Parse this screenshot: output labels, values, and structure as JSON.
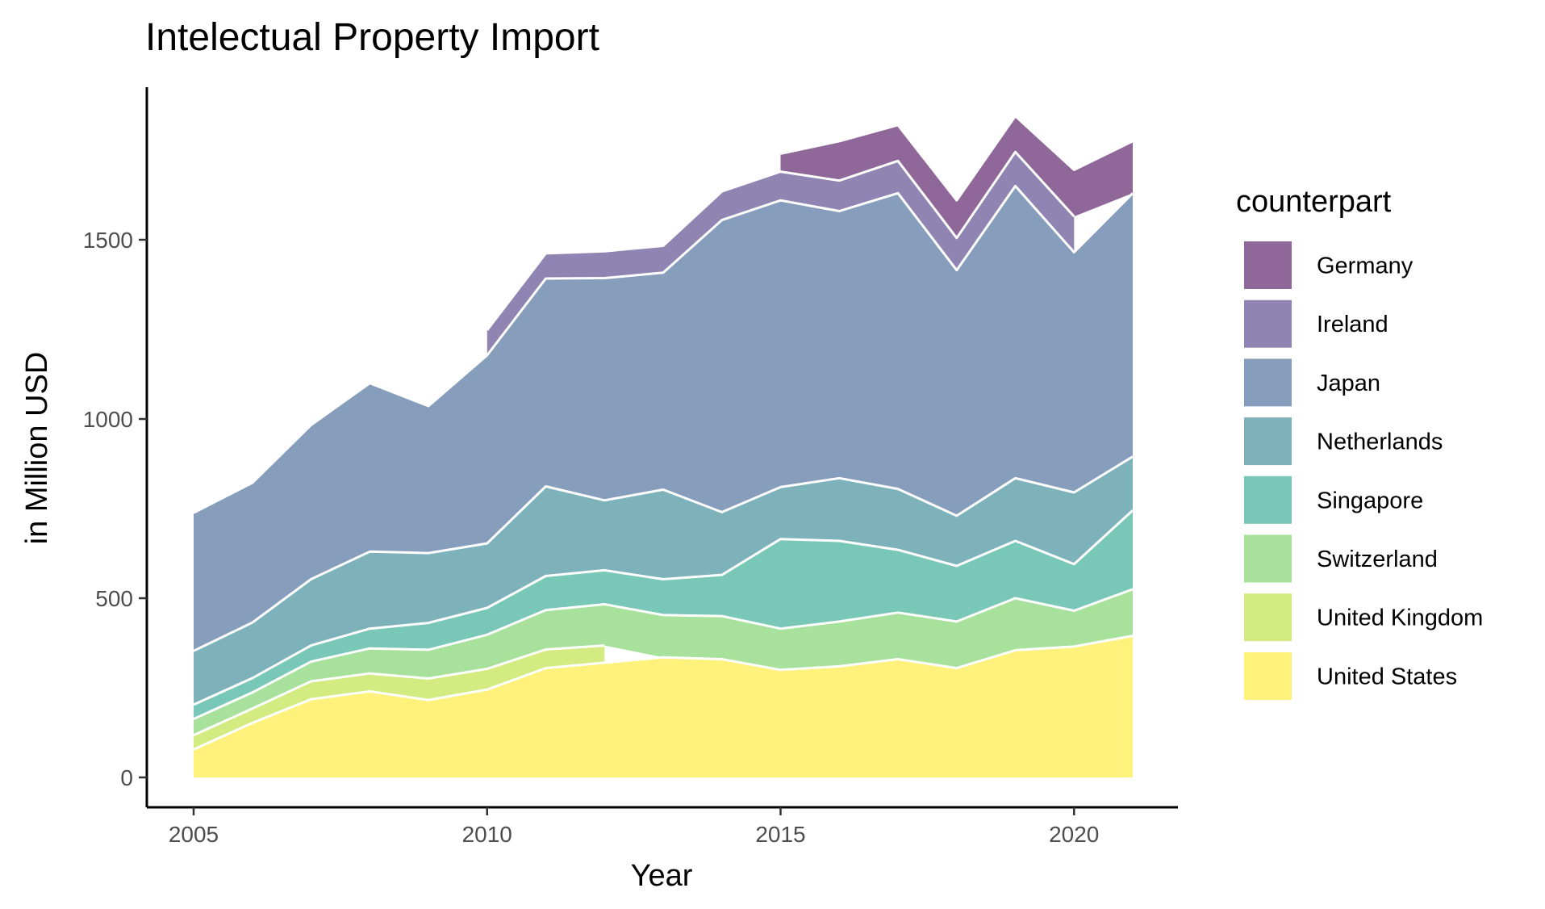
{
  "chart_data": {
    "type": "area",
    "stacked": true,
    "title": "Intelectual Property Import",
    "xlabel": "Year",
    "ylabel": "in Million USD",
    "xlim": [
      2005,
      2021
    ],
    "ylim": [
      0,
      1800
    ],
    "x_ticks": [
      2005,
      2010,
      2015,
      2020
    ],
    "y_ticks": [
      0,
      500,
      1000,
      1500
    ],
    "grid": false,
    "legend": {
      "title": "counterpart",
      "position": "right"
    },
    "x": [
      2005,
      2006,
      2007,
      2008,
      2009,
      2010,
      2011,
      2012,
      2013,
      2014,
      2015,
      2016,
      2017,
      2018,
      2019,
      2020,
      2021
    ],
    "series": [
      {
        "name": "United States",
        "color": "#FDE725",
        "values": [
          78,
          152,
          218,
          240,
          216,
          245,
          305,
          320,
          335,
          330,
          300,
          310,
          330,
          305,
          355,
          365,
          395
        ]
      },
      {
        "name": "United Kingdom",
        "color": "#B5DE2B",
        "values": [
          40,
          40,
          50,
          50,
          60,
          58,
          52,
          48,
          null,
          null,
          null,
          null,
          null,
          null,
          null,
          null,
          null
        ]
      },
      {
        "name": "Switzerland",
        "color": "#6CCD5A",
        "values": [
          45,
          45,
          55,
          70,
          80,
          95,
          110,
          115,
          118,
          120,
          115,
          125,
          130,
          130,
          145,
          100,
          130
        ]
      },
      {
        "name": "Singapore",
        "color": "#1FA187",
        "values": [
          40,
          40,
          45,
          55,
          75,
          75,
          95,
          95,
          100,
          115,
          250,
          225,
          175,
          155,
          160,
          130,
          220
        ]
      },
      {
        "name": "Netherlands",
        "color": "#277F8E",
        "values": [
          150,
          155,
          185,
          215,
          195,
          180,
          250,
          195,
          250,
          175,
          145,
          175,
          170,
          140,
          175,
          200,
          150
        ]
      },
      {
        "name": "Japan",
        "color": "#365C8D",
        "values": [
          385,
          390,
          430,
          470,
          410,
          525,
          580,
          620,
          605,
          815,
          800,
          745,
          825,
          685,
          815,
          670,
          735
        ]
      },
      {
        "name": "Ireland",
        "color": "#46337E",
        "values": [
          null,
          null,
          null,
          null,
          null,
          70,
          70,
          75,
          75,
          80,
          80,
          85,
          90,
          90,
          95,
          100,
          null
        ]
      },
      {
        "name": "Germany",
        "color": "#440154",
        "values": [
          null,
          null,
          null,
          null,
          null,
          null,
          null,
          null,
          null,
          null,
          50,
          110,
          100,
          105,
          100,
          130,
          145
        ]
      }
    ]
  }
}
